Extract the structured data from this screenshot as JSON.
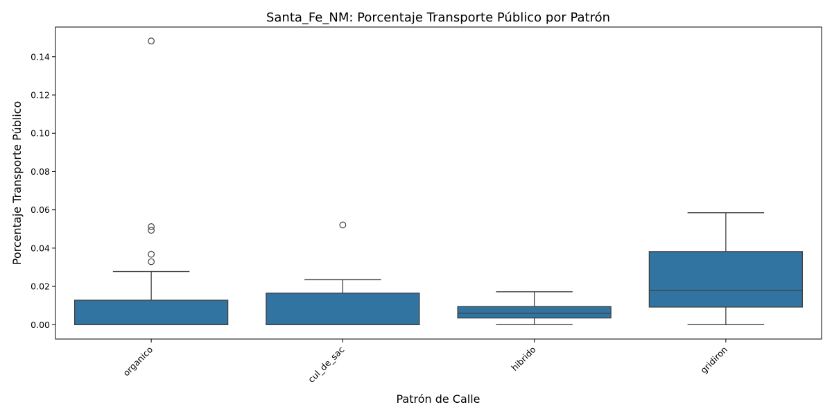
{
  "chart_data": {
    "type": "boxplot",
    "title": "Santa_Fe_NM: Porcentaje Transporte Público por Patrón",
    "xlabel": "Patrón de Calle",
    "ylabel": "Porcentaje Transporte Público",
    "categories": [
      "organico",
      "cul_de_sac",
      "hibrido",
      "gridiron"
    ],
    "ylim": [
      -0.0075,
      0.1555
    ],
    "yticks": [
      0.0,
      0.02,
      0.04,
      0.06,
      0.08,
      0.1,
      0.12,
      0.14
    ],
    "ytick_labels": [
      "0.00",
      "0.02",
      "0.04",
      "0.06",
      "0.08",
      "0.10",
      "0.12",
      "0.14"
    ],
    "grid": false,
    "box_color": "#3274a1",
    "boxes": [
      {
        "category": "organico",
        "whisker_low": 0.0,
        "q1": 0.0,
        "median": 0.0,
        "q3": 0.0128,
        "whisker_high": 0.0278,
        "outliers": [
          0.0329,
          0.0368,
          0.0493,
          0.0512,
          0.1482
        ]
      },
      {
        "category": "cul_de_sac",
        "whisker_low": 0.0,
        "q1": 0.0,
        "median": 0.0,
        "q3": 0.0165,
        "whisker_high": 0.0235,
        "outliers": [
          0.0521
        ]
      },
      {
        "category": "hibrido",
        "whisker_low": 0.0,
        "q1": 0.0035,
        "median": 0.006,
        "q3": 0.0095,
        "whisker_high": 0.0172,
        "outliers": []
      },
      {
        "category": "gridiron",
        "whisker_low": 0.0,
        "q1": 0.0092,
        "median": 0.018,
        "q3": 0.0382,
        "whisker_high": 0.0585,
        "outliers": []
      }
    ]
  }
}
